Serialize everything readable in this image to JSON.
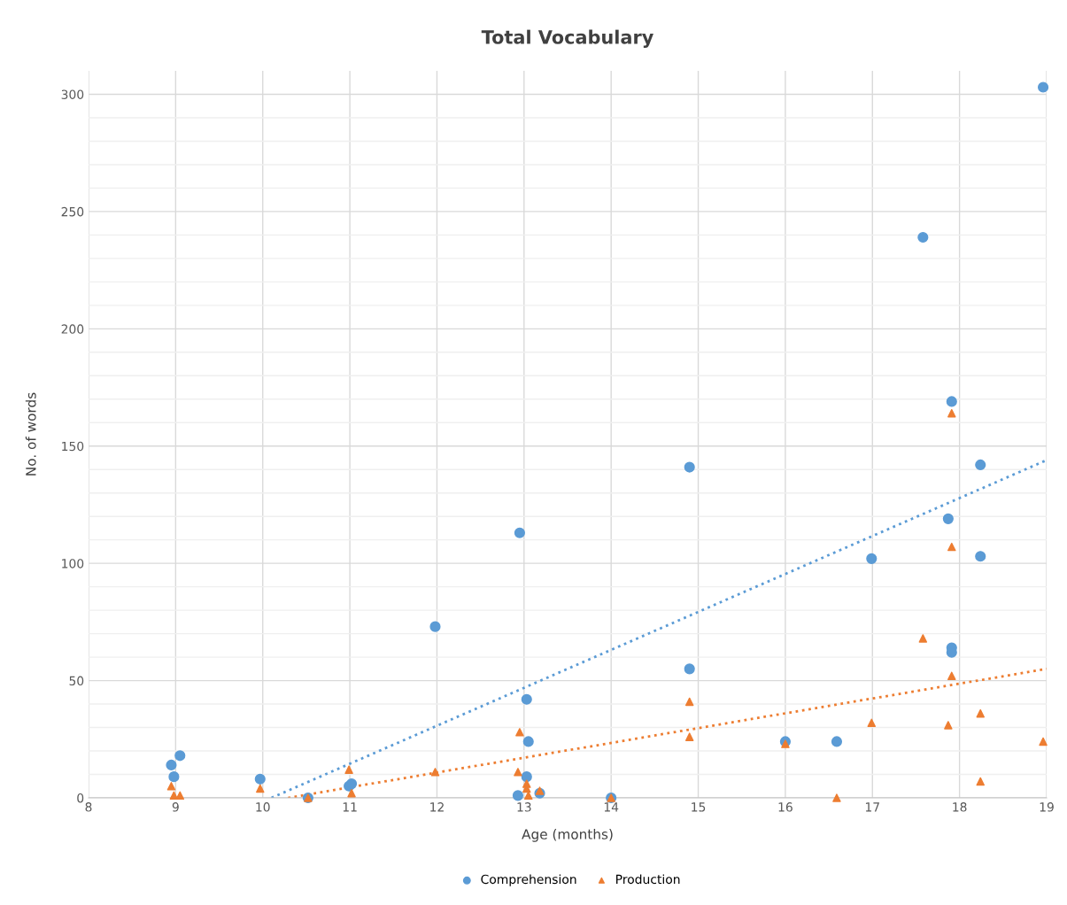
{
  "chart_data": {
    "type": "scatter",
    "title": "Total Vocabulary",
    "xlabel": "Age (months)",
    "ylabel": "No. of words",
    "xlim": [
      8,
      19
    ],
    "xticks": [
      8,
      9,
      10,
      11,
      12,
      13,
      14,
      15,
      16,
      17,
      18,
      19
    ],
    "ylim": [
      0,
      310
    ],
    "yticks": [
      0,
      {
        "value": 10,
        "label": null
      },
      {
        "value": 20,
        "label": null
      },
      {
        "value": 30,
        "label": null
      },
      {
        "value": 40,
        "label": null
      },
      50,
      {
        "value": 60,
        "label": null
      },
      {
        "value": 70,
        "label": null
      },
      {
        "value": 80,
        "label": null
      },
      {
        "value": 90,
        "label": null
      },
      100,
      {
        "value": 110,
        "label": null
      },
      {
        "value": 120,
        "label": null
      },
      {
        "value": 130,
        "label": null
      },
      {
        "value": 140,
        "label": null
      },
      150,
      {
        "value": 160,
        "label": null
      },
      {
        "value": 170,
        "label": null
      },
      {
        "value": 180,
        "label": null
      },
      {
        "value": 190,
        "label": null
      },
      200,
      {
        "value": 210,
        "label": null
      },
      {
        "value": 220,
        "label": null
      },
      {
        "value": 230,
        "label": null
      },
      {
        "value": 240,
        "label": null
      },
      250,
      {
        "value": 260,
        "label": null
      },
      {
        "value": 270,
        "label": null
      },
      {
        "value": 280,
        "label": null
      },
      {
        "value": 290,
        "label": null
      },
      300
    ],
    "grid": true,
    "legend": "bottom",
    "series": [
      {
        "name": "Comprehension",
        "color": "#5b9bd5",
        "marker": "circle",
        "x": [
          8.95,
          8.98,
          9.05,
          9.97,
          10.52,
          10.99,
          11.02,
          11.98,
          12.95,
          12.93,
          13.03,
          13.05,
          13.03,
          13.18,
          14.0,
          14.9,
          14.9,
          16.0,
          16.59,
          16.99,
          17.58,
          17.87,
          17.91,
          17.91,
          17.91,
          18.24,
          18.24,
          18.96
        ],
        "values": [
          14,
          9,
          18,
          8,
          0,
          5,
          6,
          73,
          113,
          1,
          42,
          24,
          9,
          2,
          0,
          141,
          55,
          24,
          24,
          102,
          239,
          119,
          169,
          64,
          62,
          142,
          103,
          303
        ]
      },
      {
        "name": "Production",
        "color": "#ed7d31",
        "marker": "triangle",
        "x": [
          8.95,
          8.98,
          9.05,
          9.97,
          10.52,
          10.99,
          11.02,
          11.98,
          12.95,
          12.93,
          13.03,
          13.03,
          13.05,
          13.18,
          14.0,
          14.9,
          14.9,
          16.0,
          16.59,
          16.99,
          17.58,
          17.87,
          17.91,
          17.91,
          17.91,
          18.24,
          18.24,
          18.96
        ],
        "values": [
          5,
          1,
          1,
          4,
          0,
          12,
          2,
          11,
          28,
          11,
          6,
          4,
          1,
          3,
          0,
          41,
          26,
          23,
          0,
          32,
          68,
          31,
          164,
          107,
          52,
          36,
          7,
          24
        ]
      },
      {
        "type": "line",
        "color": "#5b9bd5",
        "line_style": "dotted",
        "marker": "none",
        "x": [
          10.1,
          19
        ],
        "values": [
          0,
          144
        ]
      },
      {
        "type": "line",
        "color": "#ed7d31",
        "line_style": "dotted",
        "marker": "none",
        "x": [
          10.29,
          19
        ],
        "values": [
          0,
          55
        ]
      }
    ]
  }
}
